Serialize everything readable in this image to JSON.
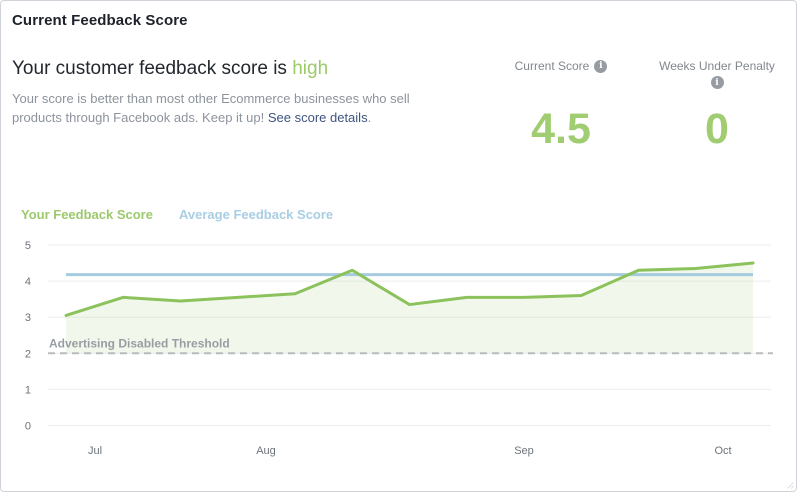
{
  "card": {
    "title": "Current Feedback Score"
  },
  "summary": {
    "heading_prefix": "Your customer feedback score is ",
    "heading_highlight": "high",
    "body": "Your score is better than most other Ecommerce businesses who sell products through Facebook ads. Keep it up! ",
    "link_label": "See score details",
    "suffix": "."
  },
  "stats": [
    {
      "label": "Current Score",
      "value": "4.5"
    },
    {
      "label": "Weeks Under Penalty",
      "value": "0"
    }
  ],
  "icons": {
    "info_glyph": "i"
  },
  "legend": [
    {
      "label": "Your Feedback Score",
      "color": "#9cc96d"
    },
    {
      "label": "Average Feedback Score",
      "color": "#a9cee4"
    }
  ],
  "colors": {
    "accent_green_text": "#a0cc72",
    "highlight_green": "#9bca68",
    "line_green": "#8cc25c",
    "area_green": "rgba(140,194,92,0.12)",
    "average_blue": "#a4cbdf",
    "threshold_gray": "#b9bcbe",
    "gridline": "#ebedef",
    "link_blue": "#3f5480"
  },
  "chart_data": {
    "type": "line",
    "title": "",
    "xlabel": "",
    "ylabel": "",
    "ylim": [
      0,
      5
    ],
    "y_ticks": [
      0,
      1,
      2,
      3,
      4,
      5
    ],
    "x_tick_labels": [
      "Jul",
      "Aug",
      "Sep",
      "Oct"
    ],
    "x_unit": "week",
    "grid": true,
    "legend_position": "top-left",
    "series": [
      {
        "name": "Your Feedback Score",
        "type": "line",
        "color": "#8cc25c",
        "fill": "rgba(140,194,92,0.12)",
        "values": [
          3.05,
          3.55,
          3.45,
          3.55,
          3.65,
          4.3,
          3.35,
          3.55,
          3.55,
          3.6,
          4.3,
          4.35,
          4.5
        ]
      },
      {
        "name": "Average Feedback Score",
        "type": "constant-line",
        "color": "#a4cbdf",
        "value": 4.18
      }
    ],
    "threshold": {
      "label": "Advertising Disabled Threshold",
      "value": 2,
      "color": "#b9bcbe"
    }
  }
}
